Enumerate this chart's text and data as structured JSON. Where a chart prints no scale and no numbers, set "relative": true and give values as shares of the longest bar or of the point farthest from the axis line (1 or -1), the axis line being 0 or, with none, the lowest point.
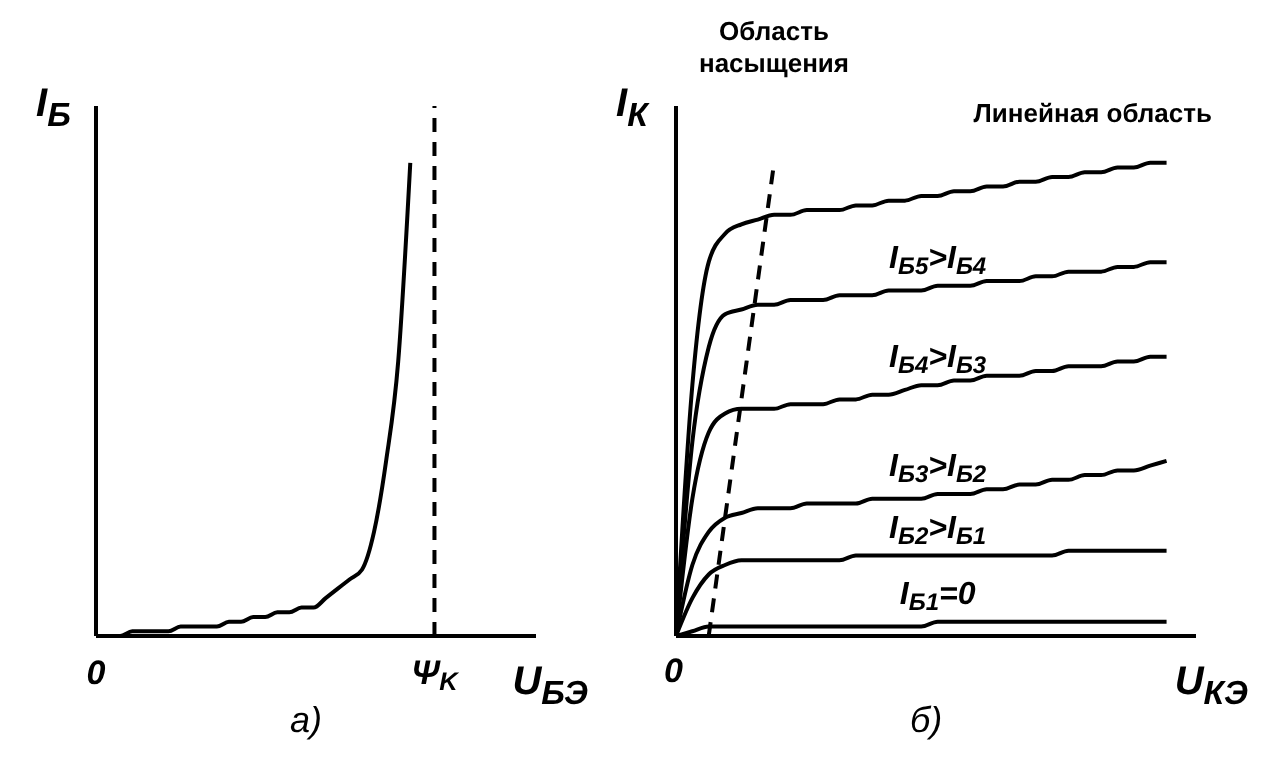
{
  "chart_data": [
    {
      "type": "line",
      "relative": true,
      "title": "а)",
      "xlabel": "U$_{БЭ}$",
      "ylabel": "I$_{Б}$",
      "categories": [
        "0",
        null,
        null,
        null,
        null,
        null,
        null,
        null,
        null,
        null,
        null,
        null,
        null,
        null,
        null,
        null,
        null,
        null,
        null,
        null,
        null,
        null,
        null,
        null,
        null,
        null,
        null,
        null,
        "Ψ$_{K}$"
      ],
      "ref_lines": [
        {
          "axis": "x",
          "value": "Ψ$_{K}$",
          "line_style": "dashed",
          "color": "#000000"
        }
      ],
      "series": [
        {
          "color": "#000000",
          "values": [
            0,
            0,
            0,
            0.01,
            0.01,
            0.01,
            0.01,
            0.02,
            0.02,
            0.02,
            0.02,
            0.03,
            0.03,
            0.04,
            0.04,
            0.05,
            0.05,
            0.06,
            0.06,
            0.08,
            0.1,
            0.12,
            0.14,
            0.22,
            0.37,
            0.58,
            1,
            null,
            null
          ]
        }
      ]
    },
    {
      "type": "line",
      "relative": true,
      "title": "б)",
      "xlabel": "U$_{КЭ}$",
      "ylabel": "I$_{К}$",
      "categories": [
        null,
        null,
        null,
        null,
        null,
        null,
        null,
        null,
        null,
        null,
        null,
        null,
        null,
        null,
        null,
        null,
        null,
        null,
        null,
        null,
        null,
        null,
        null,
        null,
        null,
        null,
        null,
        null,
        null,
        null,
        null
      ],
      "annotations": [
        "Область насыщения",
        "Линейная область",
        "0"
      ],
      "series": [
        {
          "color": "#000000",
          "values": [
            0,
            0.53,
            0.79,
            0.85,
            0.87,
            0.88,
            0.89,
            0.89,
            0.9,
            0.9,
            0.9,
            0.91,
            0.91,
            0.92,
            0.92,
            0.93,
            0.93,
            0.94,
            0.94,
            0.95,
            0.95,
            0.96,
            0.96,
            0.97,
            0.97,
            0.98,
            0.98,
            0.99,
            0.99,
            1,
            1
          ]
        },
        {
          "name": "I$_{Б5}$>I$_{Б4}$",
          "color": "#000000",
          "values": [
            0,
            0.41,
            0.61,
            0.68,
            0.69,
            0.7,
            0.7,
            0.71,
            0.71,
            0.71,
            0.72,
            0.72,
            0.72,
            0.73,
            0.73,
            0.73,
            0.74,
            0.74,
            0.74,
            0.75,
            0.75,
            0.75,
            0.76,
            0.76,
            0.77,
            0.77,
            0.77,
            0.78,
            0.78,
            0.79,
            0.79
          ]
        },
        {
          "name": "I$_{Б4}$>I$_{Б3}$",
          "color": "#000000",
          "values": [
            0,
            0.29,
            0.43,
            0.47,
            0.48,
            0.48,
            0.48,
            0.49,
            0.49,
            0.49,
            0.5,
            0.5,
            0.51,
            0.51,
            0.52,
            0.53,
            0.53,
            0.54,
            0.54,
            0.55,
            0.55,
            0.55,
            0.56,
            0.56,
            0.57,
            0.57,
            0.57,
            0.58,
            0.58,
            0.59,
            0.59
          ]
        },
        {
          "name": "I$_{Б3}$>I$_{Б2}$",
          "color": "#000000",
          "values": [
            0,
            0.15,
            0.22,
            0.25,
            0.26,
            0.27,
            0.27,
            0.27,
            0.28,
            0.28,
            0.28,
            0.28,
            0.29,
            0.29,
            0.29,
            0.29,
            0.3,
            0.3,
            0.3,
            0.31,
            0.31,
            0.32,
            0.32,
            0.33,
            0.33,
            0.34,
            0.34,
            0.35,
            0.35,
            0.36,
            0.37
          ]
        },
        {
          "name": "I$_{Б2}$>I$_{Б1}$",
          "color": "#000000",
          "values": [
            0,
            0.08,
            0.13,
            0.15,
            0.16,
            0.16,
            0.16,
            0.16,
            0.16,
            0.16,
            0.16,
            0.17,
            0.17,
            0.17,
            0.17,
            0.17,
            0.17,
            0.17,
            0.17,
            0.17,
            0.17,
            0.17,
            0.17,
            0.17,
            0.18,
            0.18,
            0.18,
            0.18,
            0.18,
            0.18,
            0.18
          ]
        },
        {
          "name": "I$_{Б1}$=0",
          "color": "#000000",
          "values": [
            0,
            0.01,
            0.02,
            0.02,
            0.02,
            0.02,
            0.02,
            0.02,
            0.02,
            0.02,
            0.02,
            0.02,
            0.02,
            0.02,
            0.02,
            0.02,
            0.03,
            0.03,
            0.03,
            0.03,
            0.03,
            0.03,
            0.03,
            0.03,
            0.03,
            0.03,
            0.03,
            0.03,
            0.03,
            0.03,
            0.03
          ]
        },
        {
          "color": "#000000",
          "line_style": "dashed",
          "values": [
            null,
            null,
            0,
            0.25,
            0.5,
            0.75,
            1,
            null,
            null,
            null,
            null,
            null,
            null,
            null,
            null,
            null,
            null,
            null,
            null,
            null,
            null,
            null,
            null,
            null,
            null,
            null,
            null,
            null,
            null,
            null,
            null
          ]
        }
      ]
    }
  ]
}
